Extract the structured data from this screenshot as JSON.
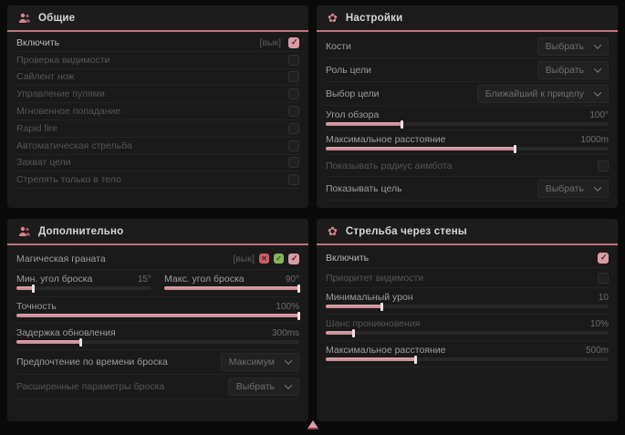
{
  "colors": {
    "accent": "#c4737d",
    "checkbox_on": "#d99ca4",
    "panel_bg": "#1a1a1a"
  },
  "p1": {
    "title": "Общие",
    "enable": {
      "label": "Включить",
      "state_hint": "[вык]",
      "checked": true
    },
    "toggles": [
      {
        "label": "Проверка видимости",
        "checked": false
      },
      {
        "label": "Сайлент нож",
        "checked": false
      },
      {
        "label": "Управление пулями",
        "checked": false
      },
      {
        "label": "Мгновенное попадание",
        "checked": false
      },
      {
        "label": "Rapid fire",
        "checked": false
      },
      {
        "label": "Автоматическая стрельба",
        "checked": false
      },
      {
        "label": "Захват цели",
        "checked": false
      },
      {
        "label": "Стрелять только в тело",
        "checked": false
      }
    ]
  },
  "p2": {
    "title": "Настройки",
    "bones": {
      "label": "Кости",
      "value": "Выбрать"
    },
    "target_role": {
      "label": "Роль цели",
      "value": "Выбрать"
    },
    "target_select": {
      "label": "Выбор цели",
      "value": "Ближайший к прицелу"
    },
    "fov": {
      "label": "Угол обзора",
      "value": "100°",
      "fill_pct": 27
    },
    "max_distance": {
      "label": "Максимальное расстояние",
      "value": "1000m",
      "fill_pct": 67
    },
    "show_radius": {
      "label": "Показывать радиус аимбота",
      "checked": false
    },
    "show_target": {
      "label": "Показывать цель",
      "value": "Выбрать"
    }
  },
  "p3": {
    "title": "Дополнительно",
    "magic_grenade": {
      "label": "Магическая граната",
      "state_hint": "[вык]",
      "checked": true
    },
    "min_angle": {
      "label": "Мин. угол броска",
      "value": "15°",
      "fill_pct": 13
    },
    "max_angle": {
      "label": "Макс. угол броска",
      "value": "90°",
      "fill_pct": 100
    },
    "accuracy": {
      "label": "Точность",
      "value": "100%",
      "fill_pct": 100
    },
    "update_delay": {
      "label": "Задержка обновления",
      "value": "300ms",
      "fill_pct": 23
    },
    "throw_time_pref": {
      "label": "Предпочтение по времени броска",
      "value": "Максимум"
    },
    "advanced_throw": {
      "label": "Расширенные параметры броска",
      "value": "Выбрать"
    }
  },
  "p4": {
    "title": "Стрельба через стены",
    "enable": {
      "label": "Включить",
      "checked": true
    },
    "visibility_priority": {
      "label": "Приоритет видимости",
      "checked": false
    },
    "min_damage": {
      "label": "Минимальный урон",
      "value": "10",
      "fill_pct": 20
    },
    "penetration_chance": {
      "label": "Шанс проникновения",
      "value": "10%",
      "fill_pct": 10
    },
    "max_distance": {
      "label": "Максимальное расстояние",
      "value": "500m",
      "fill_pct": 32
    }
  }
}
